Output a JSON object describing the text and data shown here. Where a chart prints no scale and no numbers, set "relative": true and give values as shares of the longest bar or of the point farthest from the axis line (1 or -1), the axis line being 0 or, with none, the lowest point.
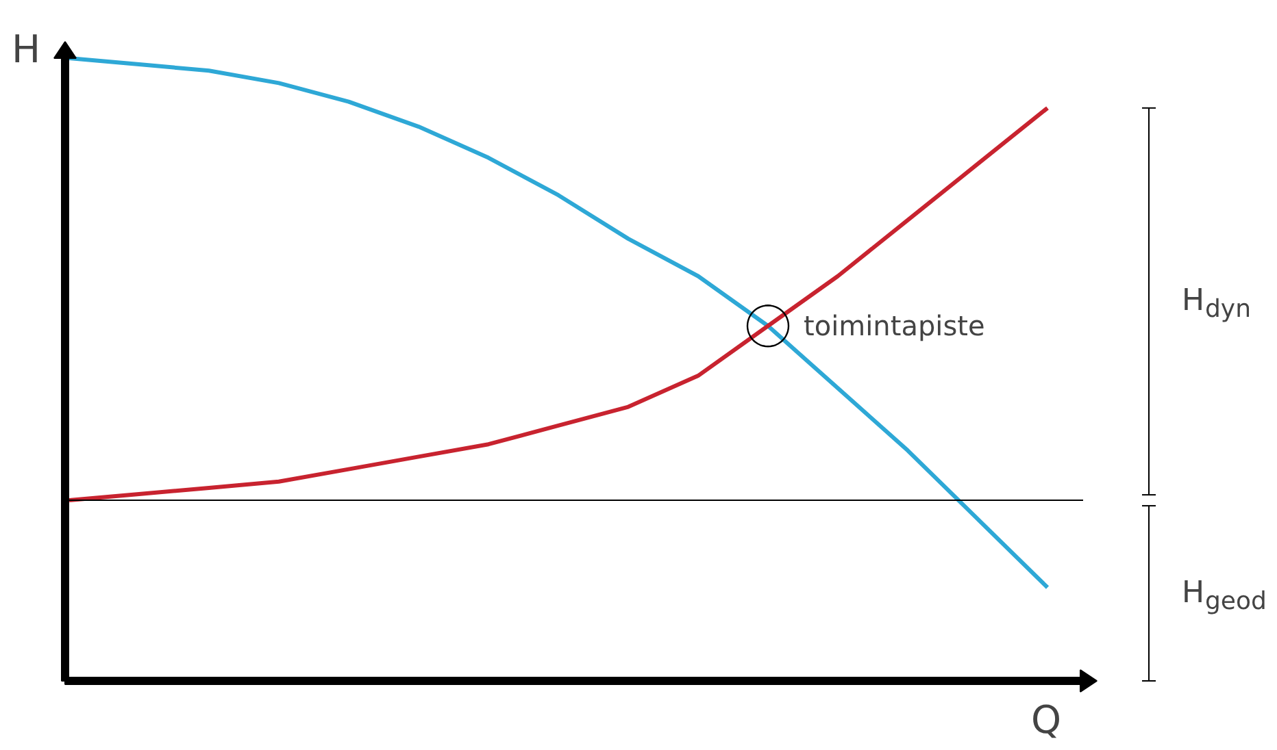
{
  "chart_data": {
    "type": "line",
    "relative": true,
    "xlabel": "Q",
    "ylabel": "H",
    "grid": false,
    "categories": [
      null,
      null,
      null,
      null,
      null,
      null,
      null,
      null,
      null,
      null,
      null,
      null,
      null,
      null,
      null
    ],
    "series": [
      {
        "color": "#2ea8d6",
        "values": [
          1.0,
          0.99,
          0.98,
          0.96,
          0.93,
          0.89,
          0.84,
          0.78,
          0.71,
          0.65,
          0.57,
          0.47,
          0.37,
          0.26,
          0.15
        ]
      },
      {
        "color": "#c8232f",
        "values": [
          0.29,
          0.3,
          0.31,
          0.32,
          0.34,
          0.36,
          0.38,
          0.41,
          0.44,
          0.49,
          0.57,
          0.65,
          0.74,
          0.83,
          0.92
        ]
      }
    ],
    "ref_lines": [
      {
        "axis": "y",
        "value": 0.29,
        "color": "#000000"
      }
    ],
    "annotations": [
      "toimintapiste",
      "H$_{dyn}$",
      "H$_{geod}$"
    ]
  }
}
